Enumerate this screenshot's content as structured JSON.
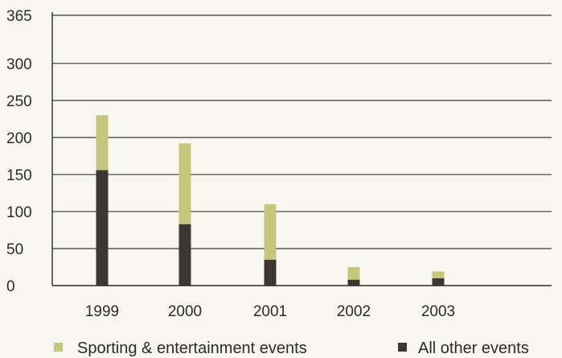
{
  "chart_data": {
    "type": "bar",
    "stacked": true,
    "categories": [
      "1999",
      "2000",
      "2001",
      "2002",
      "2003"
    ],
    "series": [
      {
        "name": "All other events",
        "color": "#3b3834",
        "values": [
          156,
          83,
          35,
          8,
          10
        ]
      },
      {
        "name": "Sporting & entertainment events",
        "color": "#c8c57c",
        "values": [
          74,
          109,
          75,
          17,
          9
        ]
      }
    ],
    "title": "",
    "xlabel": "",
    "ylabel": "",
    "ylim": [
      0,
      365
    ],
    "yticks": [
      "0",
      "50",
      "100",
      "150",
      "200",
      "250",
      "300",
      "365"
    ],
    "ytick_values": [
      0,
      50,
      100,
      150,
      200,
      250,
      300,
      365
    ],
    "grid": true,
    "legend": {
      "placement": "bottom",
      "items": [
        {
          "label": "Sporting & entertainment events",
          "color": "#c8c57c"
        },
        {
          "label": "All other events",
          "color": "#3b3834"
        }
      ]
    }
  }
}
